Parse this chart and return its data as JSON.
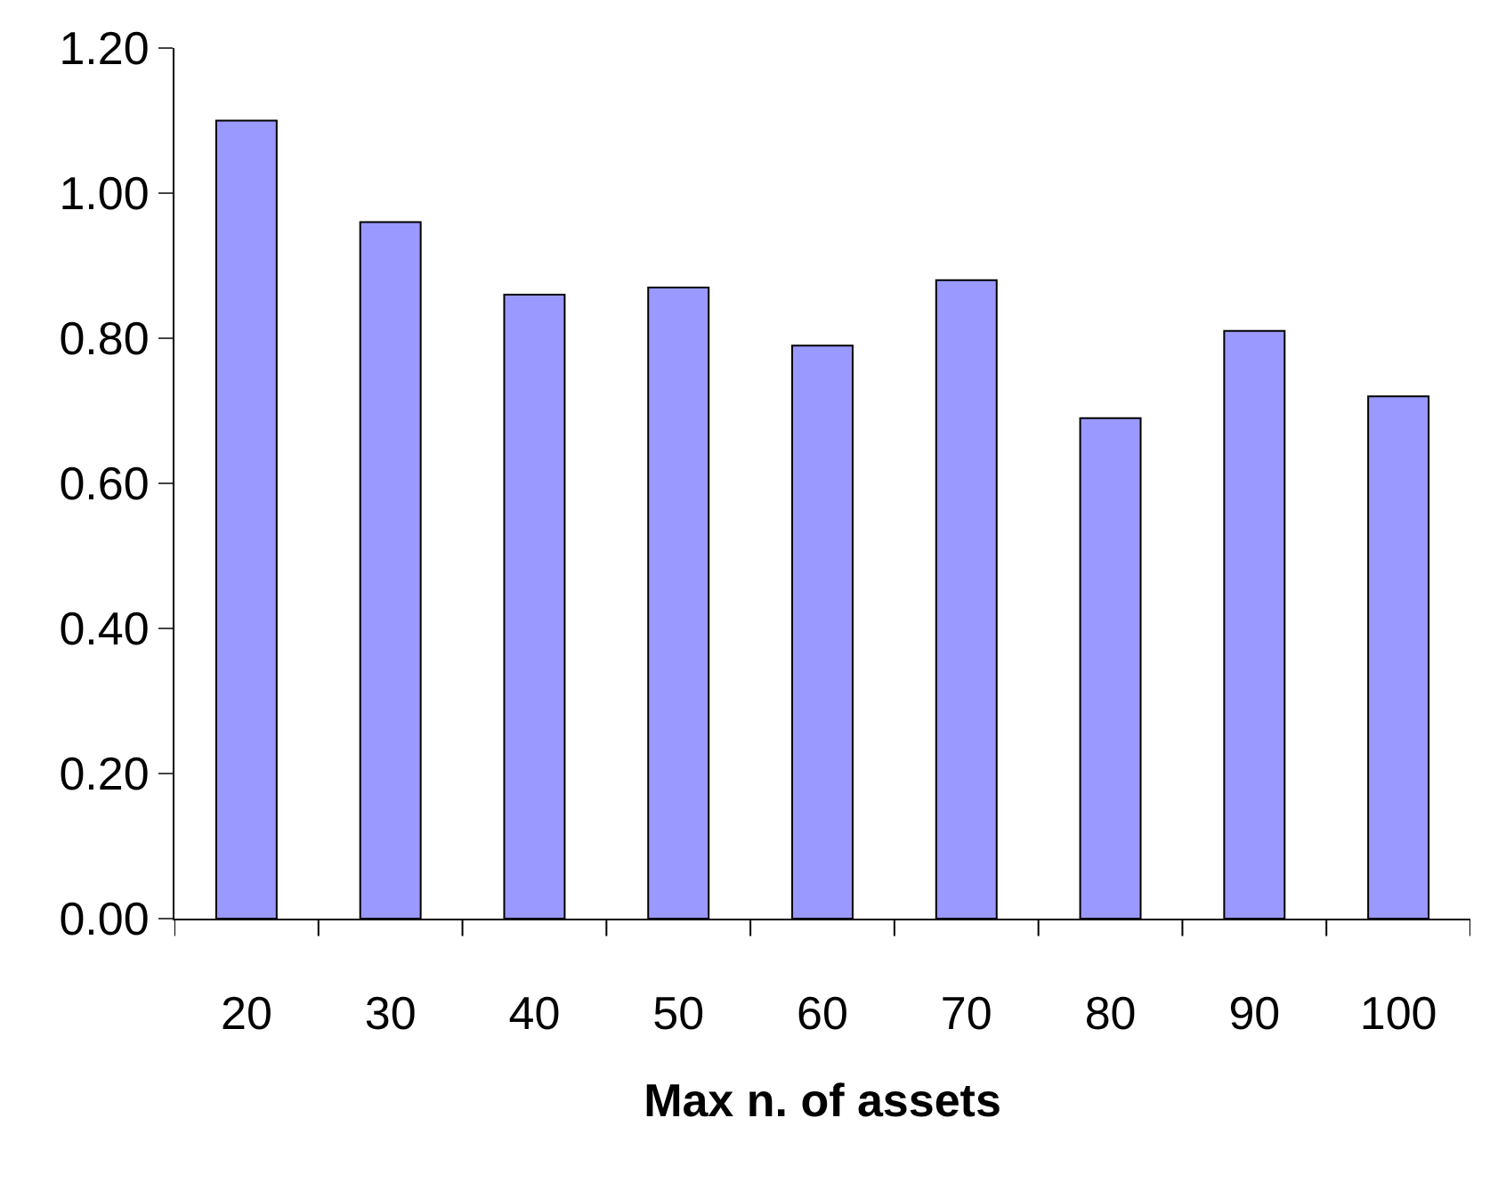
{
  "chart_data": {
    "type": "bar",
    "xlabel": "Max n. of assets",
    "categories": [
      "20",
      "30",
      "40",
      "50",
      "60",
      "70",
      "80",
      "90",
      "100"
    ],
    "values": [
      1.1,
      0.96,
      0.86,
      0.87,
      0.79,
      0.88,
      0.69,
      0.81,
      0.72
    ],
    "color": "#9999ff",
    "ylim": [
      0,
      1.2
    ],
    "yticks": [
      {
        "value": 0,
        "label": "0.00"
      },
      {
        "value": 0.2,
        "label": "0.20"
      },
      {
        "value": 0.4,
        "label": "0.40"
      },
      {
        "value": 0.6,
        "label": "0.60"
      },
      {
        "value": 0.8,
        "label": "0.80"
      },
      {
        "value": 1.0,
        "label": "1.00"
      },
      {
        "value": 1.2,
        "label": "1.20"
      }
    ],
    "orientation": "vertical"
  }
}
